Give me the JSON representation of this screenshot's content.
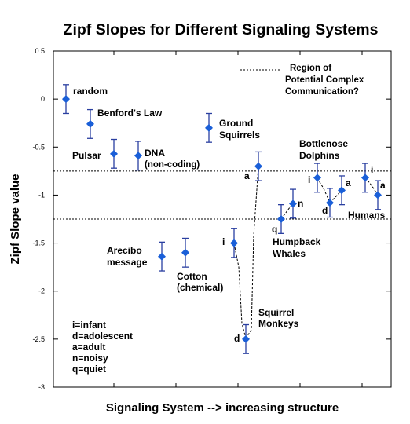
{
  "chart_data": {
    "type": "scatter",
    "title": "Zipf Slopes for Different Signaling Systems",
    "xlabel": "Signaling System --> increasing structure",
    "ylabel": "Zipf Slope value",
    "ylim": [
      -3,
      0.5
    ],
    "yticks": [
      "0.5",
      "0",
      "-0.5",
      "-1",
      "-1.5",
      "-2",
      "-2.5",
      "-3"
    ],
    "points": [
      {
        "label": "random",
        "x": 1,
        "y": 0.0,
        "err": 0.15
      },
      {
        "label": "Benford's Law",
        "x": 2,
        "y": -0.26,
        "err": 0.15
      },
      {
        "label": "Pulsar",
        "x": 3,
        "y": -0.57,
        "err": 0.15
      },
      {
        "label": "DNA (non-coding)",
        "x": 4,
        "y": -0.59,
        "err": 0.15
      },
      {
        "label": "Ground Squirrels",
        "x": 5,
        "y": -0.3,
        "err": 0.15
      },
      {
        "label": "Arecibo message",
        "x": 6,
        "y": -1.64,
        "err": 0.15
      },
      {
        "label": "Cotton (chemical)",
        "x": 7,
        "y": -1.6,
        "err": 0.15
      },
      {
        "label": "Squirrel Monkeys i",
        "x": 8,
        "y": -1.5,
        "err": 0.15
      },
      {
        "label": "Squirrel Monkeys d",
        "x": 9,
        "y": -2.5,
        "err": 0.15
      },
      {
        "label": "Squirrel Monkeys a",
        "x": 10,
        "y": -0.7,
        "err": 0.15
      },
      {
        "label": "Humpback Whales q",
        "x": 11,
        "y": -1.25,
        "err": 0.15
      },
      {
        "label": "Humpback Whales n",
        "x": 12,
        "y": -1.09,
        "err": 0.15
      },
      {
        "label": "Bottlenose Dolphins i",
        "x": 13,
        "y": -0.82,
        "err": 0.15
      },
      {
        "label": "Bottlenose Dolphins d",
        "x": 14,
        "y": -1.08,
        "err": 0.15
      },
      {
        "label": "Bottlenose Dolphins a",
        "x": 15,
        "y": -0.95,
        "err": 0.15
      },
      {
        "label": "Humans i",
        "x": 16,
        "y": -0.82,
        "err": 0.15
      },
      {
        "label": "Humans a",
        "x": 17,
        "y": -1.0,
        "err": 0.15
      }
    ],
    "reference_lines": [
      -0.75,
      -1.25
    ],
    "legend": "Region of Potential Complex Communication?"
  },
  "labels": {
    "random": "random",
    "benford": "Benford's Law",
    "pulsar": "Pulsar",
    "dna1": "DNA",
    "dna2": "(non-coding)",
    "ground1": "Ground",
    "ground2": "Squirrels",
    "arecibo1": "Arecibo",
    "arecibo2": "message",
    "cotton1": "Cotton",
    "cotton2": "(chemical)",
    "squirrel1": "Squirrel",
    "squirrel2": "Monkeys",
    "humpback1": "Humpback",
    "humpback2": "Whales",
    "bottle1": "Bottlenose",
    "bottle2": "Dolphins",
    "humans": "Humans",
    "legend1": "Region of",
    "legend2": "Potential Complex",
    "legend3": "Communication?",
    "key1": "i=infant",
    "key2": "d=adolescent",
    "key3": "a=adult",
    "key4": "n=noisy",
    "key5": "q=quiet",
    "letter_i": "i",
    "letter_d": "d",
    "letter_a": "a",
    "letter_n": "n",
    "letter_q": "q"
  }
}
